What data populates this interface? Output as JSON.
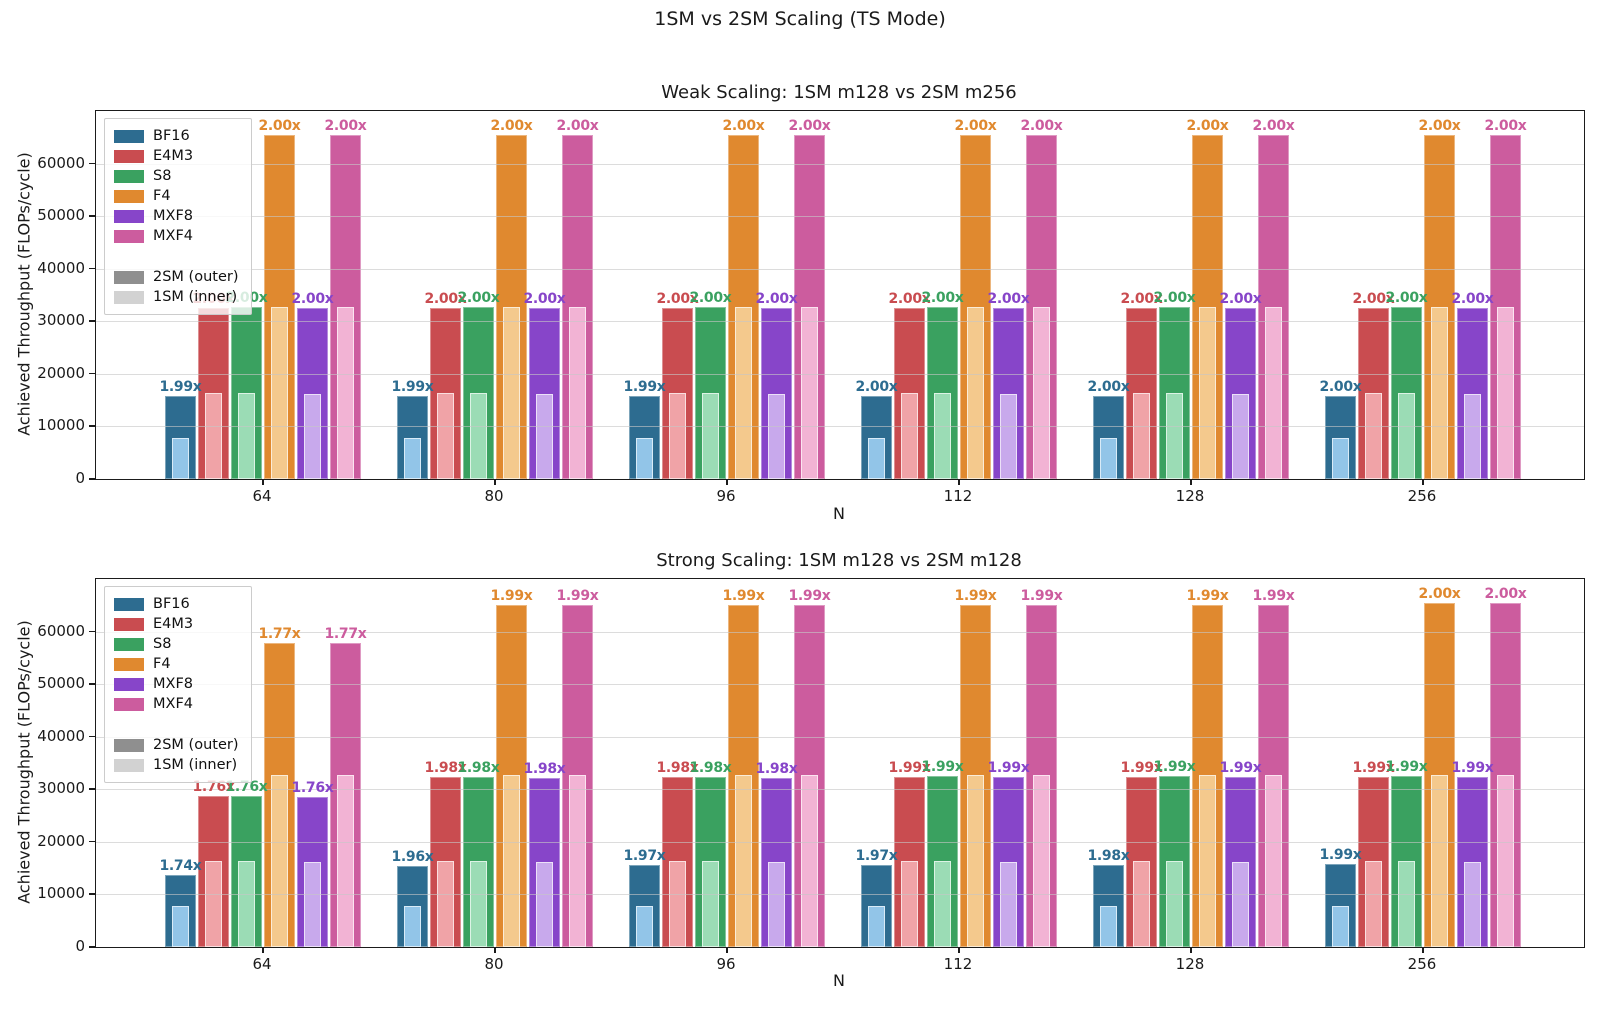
{
  "figure": {
    "title": "1SM vs 2SM Scaling (TS Mode)",
    "background": "#ffffff"
  },
  "legend": {
    "position": "upper left",
    "series": [
      {
        "label": "BF16",
        "color": "#2d6c90",
        "inner_color": "#92c5e8"
      },
      {
        "label": "E4M3",
        "color": "#c94c50",
        "inner_color": "#f0a3a7"
      },
      {
        "label": "S8",
        "color": "#3aa160",
        "inner_color": "#9bdcb5"
      },
      {
        "label": "F4",
        "color": "#e0892f",
        "inner_color": "#f4c98d"
      },
      {
        "label": "MXF8",
        "color": "#8745c9",
        "inner_color": "#c8a9ec"
      },
      {
        "label": "MXF4",
        "color": "#cc5c9e",
        "inner_color": "#f2b3d4"
      }
    ],
    "outer_label": "2SM (outer)",
    "outer_color": "#8f8f8f",
    "inner_label": "1SM (inner)",
    "inner_color": "#d2d2d2"
  },
  "chart_data": [
    {
      "type": "bar",
      "title": "Weak Scaling: 1SM m128 vs 2SM m256",
      "xlabel": "N",
      "ylabel": "Achieved Throughput (FLOPs/cycle)",
      "categories": [
        "64",
        "80",
        "96",
        "112",
        "128",
        "256"
      ],
      "yticks": [
        0,
        10000,
        20000,
        30000,
        40000,
        50000,
        60000
      ],
      "ylim": [
        0,
        70000
      ],
      "grid": true,
      "series": [
        {
          "name": "BF16",
          "sm1_values": [
            7900,
            7900,
            7900,
            7900,
            7900,
            7900
          ],
          "sm2_values": [
            15720,
            15720,
            15720,
            15800,
            15800,
            15800
          ],
          "labels": [
            "1.99x",
            "1.99x",
            "1.99x",
            "2.00x",
            "2.00x",
            "2.00x"
          ]
        },
        {
          "name": "E4M3",
          "sm1_values": [
            16300,
            16300,
            16300,
            16300,
            16300,
            16300
          ],
          "sm2_values": [
            32600,
            32600,
            32600,
            32600,
            32600,
            32600
          ],
          "labels": [
            "2.00x",
            "2.00x",
            "2.00x",
            "2.00x",
            "2.00x",
            "2.00x"
          ]
        },
        {
          "name": "S8",
          "sm1_values": [
            16320,
            16320,
            16320,
            16320,
            16320,
            16320
          ],
          "sm2_values": [
            32640,
            32640,
            32640,
            32640,
            32640,
            32640
          ],
          "labels": [
            "2.00x",
            "2.00x",
            "2.00x",
            "2.00x",
            "2.00x",
            "2.00x"
          ]
        },
        {
          "name": "F4",
          "sm1_values": [
            32700,
            32700,
            32700,
            32700,
            32700,
            32700
          ],
          "sm2_values": [
            65400,
            65400,
            65400,
            65400,
            65400,
            65400
          ],
          "labels": [
            "2.00x",
            "2.00x",
            "2.00x",
            "2.00x",
            "2.00x",
            "2.00x"
          ]
        },
        {
          "name": "MXF8",
          "sm1_values": [
            16260,
            16260,
            16260,
            16260,
            16260,
            16260
          ],
          "sm2_values": [
            32520,
            32520,
            32520,
            32520,
            32520,
            32520
          ],
          "labels": [
            "2.00x",
            "2.00x",
            "2.00x",
            "2.00x",
            "2.00x",
            "2.00x"
          ]
        },
        {
          "name": "MXF4",
          "sm1_values": [
            32700,
            32700,
            32700,
            32700,
            32700,
            32700
          ],
          "sm2_values": [
            65400,
            65400,
            65400,
            65400,
            65400,
            65400
          ],
          "labels": [
            "2.00x",
            "2.00x",
            "2.00x",
            "2.00x",
            "2.00x",
            "2.00x"
          ]
        }
      ]
    },
    {
      "type": "bar",
      "title": "Strong Scaling: 1SM m128 vs 2SM m128",
      "xlabel": "N",
      "ylabel": "Achieved Throughput (FLOPs/cycle)",
      "categories": [
        "64",
        "80",
        "96",
        "112",
        "128",
        "256"
      ],
      "yticks": [
        0,
        10000,
        20000,
        30000,
        40000,
        50000,
        60000
      ],
      "ylim": [
        0,
        70000
      ],
      "grid": true,
      "series": [
        {
          "name": "BF16",
          "sm1_values": [
            7900,
            7900,
            7900,
            7900,
            7900,
            7900
          ],
          "sm2_values": [
            13750,
            15480,
            15560,
            15560,
            15640,
            15720
          ],
          "labels": [
            "1.74x",
            "1.96x",
            "1.97x",
            "1.97x",
            "1.98x",
            "1.99x"
          ]
        },
        {
          "name": "E4M3",
          "sm1_values": [
            16300,
            16300,
            16300,
            16300,
            16300,
            16300
          ],
          "sm2_values": [
            28690,
            32270,
            32270,
            32440,
            32440,
            32440
          ],
          "labels": [
            "1.76x",
            "1.98x",
            "1.98x",
            "1.99x",
            "1.99x",
            "1.99x"
          ]
        },
        {
          "name": "S8",
          "sm1_values": [
            16320,
            16320,
            16320,
            16320,
            16320,
            16320
          ],
          "sm2_values": [
            28720,
            32310,
            32310,
            32480,
            32480,
            32480
          ],
          "labels": [
            "1.76x",
            "1.98x",
            "1.98x",
            "1.99x",
            "1.99x",
            "1.99x"
          ]
        },
        {
          "name": "F4",
          "sm1_values": [
            32700,
            32700,
            32700,
            32700,
            32700,
            32700
          ],
          "sm2_values": [
            57880,
            65070,
            65070,
            65070,
            65070,
            65400
          ],
          "labels": [
            "1.77x",
            "1.99x",
            "1.99x",
            "1.99x",
            "1.99x",
            "2.00x"
          ]
        },
        {
          "name": "MXF8",
          "sm1_values": [
            16260,
            16260,
            16260,
            16260,
            16260,
            16260
          ],
          "sm2_values": [
            28620,
            32190,
            32190,
            32360,
            32360,
            32360
          ],
          "labels": [
            "1.76x",
            "1.98x",
            "1.98x",
            "1.99x",
            "1.99x",
            "1.99x"
          ]
        },
        {
          "name": "MXF4",
          "sm1_values": [
            32700,
            32700,
            32700,
            32700,
            32700,
            32700
          ],
          "sm2_values": [
            57880,
            65070,
            65070,
            65070,
            65070,
            65400
          ],
          "labels": [
            "1.77x",
            "1.99x",
            "1.99x",
            "1.99x",
            "1.99x",
            "2.00x"
          ]
        }
      ]
    }
  ]
}
